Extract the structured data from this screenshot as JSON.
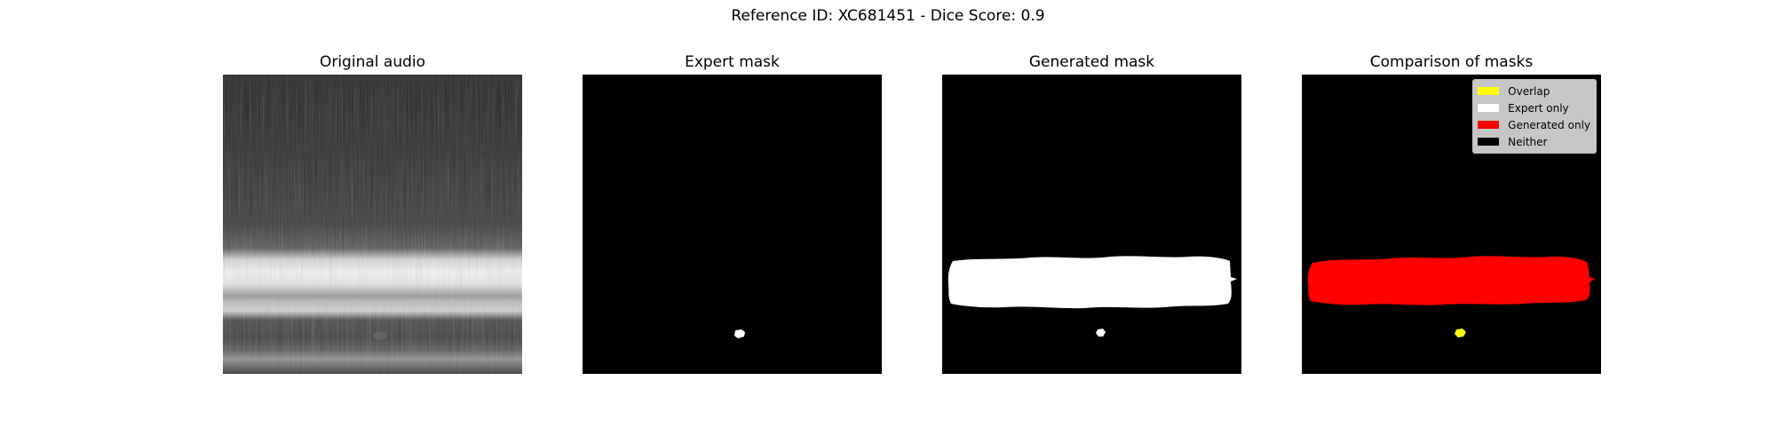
{
  "figure": {
    "suptitle": "Reference ID: XC681451 - Dice Score: 0.9"
  },
  "panels": [
    {
      "title": "Original audio"
    },
    {
      "title": "Expert mask"
    },
    {
      "title": "Generated mask"
    },
    {
      "title": "Comparison of masks"
    }
  ],
  "legend": {
    "items": [
      {
        "label": "Overlap",
        "color": "#ffff00"
      },
      {
        "label": "Expert only",
        "color": "#ffffff"
      },
      {
        "label": "Generated only",
        "color": "#ff0000"
      },
      {
        "label": "Neither",
        "color": "#000000"
      }
    ]
  },
  "colors": {
    "mask_background": "#000000",
    "mask_foreground": "#ffffff",
    "overlap": "#ffff00",
    "generated_only": "#ff0000"
  }
}
